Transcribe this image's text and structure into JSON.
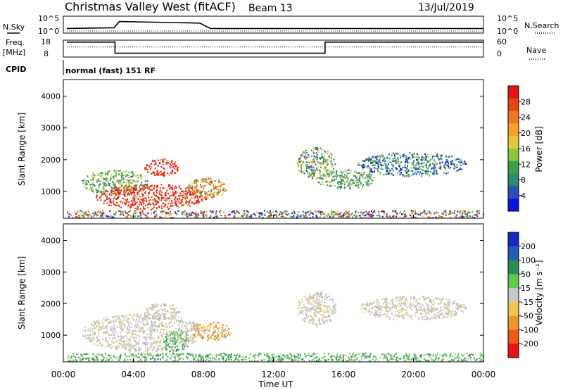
{
  "header": {
    "title": "Christmas Valley West (fitACF)",
    "beam": "Beam 13",
    "date": "13/Jul/2019"
  },
  "summary": {
    "nsky_label": "N.Sky",
    "nsky_ticks": [
      "10^5",
      "10^0"
    ],
    "nsearch_label": "N.Search",
    "nsearch_ticks": [
      "10^5",
      "10^0"
    ],
    "freq_label": "Freq.",
    "freq_unit": "[MHz]",
    "freq_ticks": [
      "18",
      "8"
    ],
    "nave_label": "Nave",
    "nave_ticks": [
      "60",
      "0"
    ],
    "cpid_label": "CPID",
    "cpid_text": "normal (fast) 151 RF"
  },
  "chart_data": [
    {
      "type": "heatmap",
      "name": "power-panel",
      "ylabel": "Slant Range [km]",
      "xlabel": "",
      "xlim": [
        0,
        24
      ],
      "ylim": [
        180,
        4500
      ],
      "yticks": [
        "1000",
        "2000",
        "3000",
        "4000"
      ],
      "colorbar": {
        "label": "Power [dB]",
        "ticks": [
          "4",
          "8",
          "12",
          "16",
          "20",
          "24",
          "28"
        ],
        "colors": [
          "#0a14e6",
          "#2850b4",
          "#2e8a6e",
          "#3aa04a",
          "#8cc63c",
          "#e6c83c",
          "#f5a028",
          "#f07820",
          "#e64614",
          "#e61414"
        ]
      },
      "echo_regions": [
        {
          "t0": 0.2,
          "t1": 24,
          "r0": 190,
          "r1": 420,
          "color": "mix"
        },
        {
          "t0": 1.0,
          "t1": 4.8,
          "r0": 900,
          "r1": 1700,
          "color": "green"
        },
        {
          "t0": 1.8,
          "t1": 8.2,
          "r0": 450,
          "r1": 1250,
          "color": "red"
        },
        {
          "t0": 4.6,
          "t1": 6.6,
          "r0": 1500,
          "r1": 2050,
          "color": "red"
        },
        {
          "t0": 7.0,
          "t1": 9.3,
          "r0": 800,
          "r1": 1450,
          "color": "orange"
        },
        {
          "t0": 13.3,
          "t1": 15.5,
          "r0": 1400,
          "r1": 2400,
          "color": "orange-green"
        },
        {
          "t0": 14.4,
          "t1": 17.8,
          "r0": 1100,
          "r1": 1700,
          "color": "green"
        },
        {
          "t0": 16.8,
          "t1": 23.0,
          "r0": 1500,
          "r1": 2250,
          "color": "green-blue"
        }
      ]
    },
    {
      "type": "heatmap",
      "name": "velocity-panel",
      "ylabel": "Slant Range [km]",
      "xlabel": "Time UT",
      "xlim": [
        0,
        24
      ],
      "ylim": [
        180,
        4500
      ],
      "xticks": [
        "00:00",
        "04:00",
        "08:00",
        "12:00",
        "16:00",
        "20:00",
        "00:00"
      ],
      "yticks": [
        "1000",
        "2000",
        "3000",
        "4000"
      ],
      "colorbar": {
        "label": "Velocity [m s⁻¹]",
        "ticks": [
          "200",
          "100",
          "50",
          "15",
          "-15",
          "-50",
          "-100",
          "-200"
        ],
        "colors": [
          "#1428c8",
          "#2a5ab8",
          "#2e8a56",
          "#64c850",
          "#c8c8c8",
          "#f0c850",
          "#f09628",
          "#f05a14",
          "#e61414"
        ]
      },
      "echo_regions": [
        {
          "t0": 0.2,
          "t1": 24,
          "r0": 190,
          "r1": 450,
          "color": "green"
        },
        {
          "t0": 1.0,
          "t1": 8.0,
          "r0": 500,
          "r1": 1700,
          "color": "gray"
        },
        {
          "t0": 4.6,
          "t1": 6.6,
          "r0": 1500,
          "r1": 2050,
          "color": "gray"
        },
        {
          "t0": 5.6,
          "t1": 7.2,
          "r0": 450,
          "r1": 1200,
          "color": "green"
        },
        {
          "t0": 7.2,
          "t1": 9.6,
          "r0": 850,
          "r1": 1450,
          "color": "orange"
        },
        {
          "t0": 13.3,
          "t1": 15.6,
          "r0": 1300,
          "r1": 2400,
          "color": "gray"
        },
        {
          "t0": 16.8,
          "t1": 23.0,
          "r0": 1500,
          "r1": 2250,
          "color": "gray"
        }
      ]
    }
  ],
  "line_data": {
    "nsky": [
      [
        0.2,
        0.25
      ],
      [
        2.9,
        0.3
      ],
      [
        3.2,
        0.7
      ],
      [
        7.8,
        0.6
      ],
      [
        8.4,
        0.25
      ],
      [
        24,
        0.25
      ]
    ],
    "nsearch": [
      [
        0.2,
        0.0
      ],
      [
        24,
        0.0
      ]
    ],
    "freq": [
      [
        0.2,
        0.92
      ],
      [
        2.95,
        0.92
      ],
      [
        2.95,
        0.2
      ],
      [
        14.95,
        0.2
      ],
      [
        14.95,
        0.92
      ],
      [
        24,
        0.92
      ]
    ],
    "nave": [
      [
        0.2,
        0.6
      ],
      [
        24,
        0.6
      ]
    ]
  }
}
